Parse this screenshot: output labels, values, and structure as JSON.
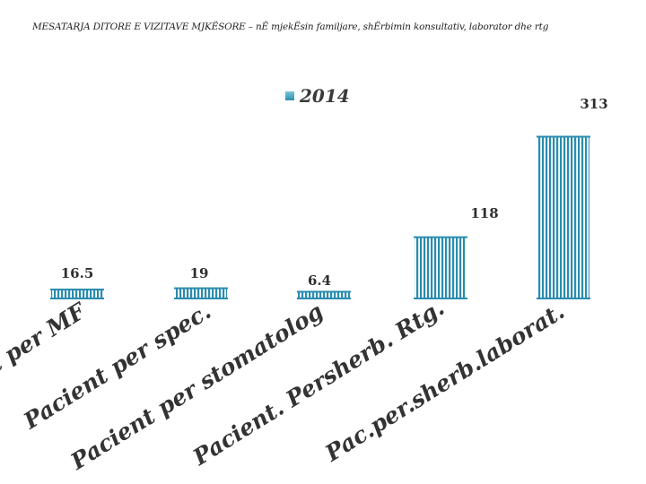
{
  "chart_data": {
    "type": "bar",
    "title": "MESATARJA DITORE E VIZITAVE MJKËSORE – nË mjekËsin familjare, shËrbimin konsultativ, laborator dhe rtg",
    "categories": [
      "Pacient per MF",
      "Pacient per spec.",
      "Pacient per stomatolog",
      "Pacient. Persherb. Rtg.",
      "Pac.per.sherb.laborat."
    ],
    "series": [
      {
        "name": "2014",
        "values": [
          16.5,
          19,
          6.4,
          118,
          313
        ]
      }
    ],
    "value_labels": [
      "16.5",
      "19",
      "6.4",
      "118",
      "313"
    ],
    "ylim": [
      0,
      313
    ],
    "legend_position": "top-center",
    "grid": false,
    "colors": {
      "bar_light": "#9fd6e6",
      "bar_dark": "#2a8cae",
      "text": "#2f2f2f",
      "label": "#333333"
    }
  }
}
